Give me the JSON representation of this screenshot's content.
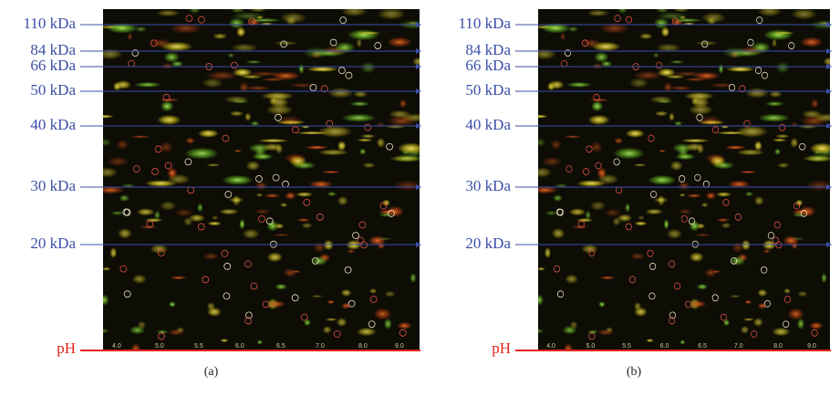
{
  "panels": [
    {
      "label": "(a)"
    },
    {
      "label": "(b)"
    }
  ],
  "mw_markers": [
    "110 kDa",
    "84 kDa",
    "66 kDa",
    "50 kDa",
    "40 kDa",
    "30 kDa",
    "20 kDa"
  ],
  "ph_label": "pH",
  "ph_scale": [
    "4.0",
    "5.0",
    "5.5",
    "6.0",
    "6.5",
    "7.0",
    "8.0",
    "9.0"
  ]
}
